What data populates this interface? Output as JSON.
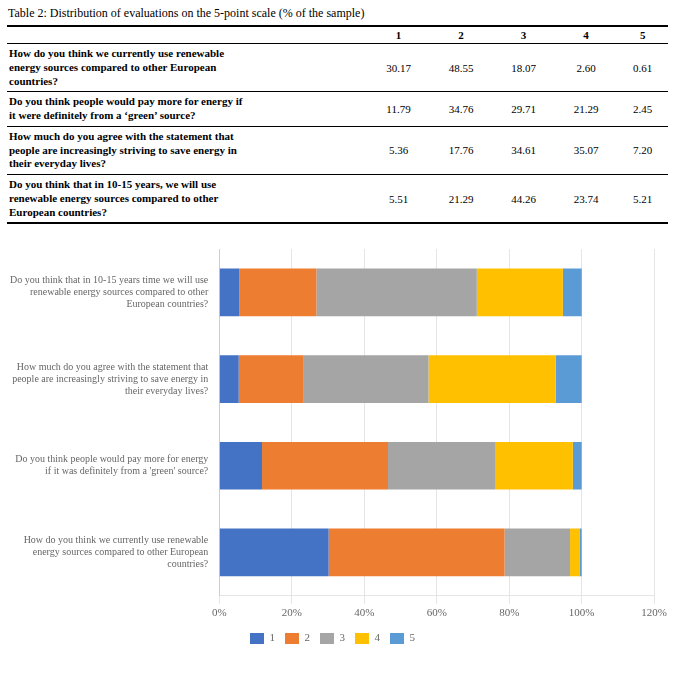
{
  "chart_data": [
    {
      "type": "table",
      "title": "Table 2: Distribution of evaluations on the 5-point scale (% of the sample)",
      "columns": [
        "1",
        "2",
        "3",
        "4",
        "5"
      ],
      "categories": [
        "How do you think we currently use renewable\nenergy sources compared to other European\ncountries?",
        "Do you think people would pay more for energy if\nit were definitely from a ‘green’ source?",
        "How much do you agree with the statement that\npeople are increasingly striving to save energy in\ntheir everyday lives?",
        "Do you think that in 10-15 years, we will use\nrenewable energy sources compared to other\nEuropean countries?"
      ],
      "values": [
        [
          30.17,
          48.55,
          18.07,
          2.6,
          0.61
        ],
        [
          11.79,
          34.76,
          29.71,
          21.29,
          2.45
        ],
        [
          5.36,
          17.76,
          34.61,
          35.07,
          7.2
        ],
        [
          5.51,
          21.29,
          44.26,
          23.74,
          5.21
        ]
      ]
    },
    {
      "type": "bar",
      "orientation": "horizontal",
      "stacked": true,
      "categories": [
        "Do you think that in 10-15 years time we will use\nrenewable energy sources compared to other\nEuropean countries?",
        "How much do you agree with the statement that\npeople are increasingly striving to save energy in\ntheir everyday lives?",
        "Do you think people would pay more for energy\nif it was definitely from a 'green' source?",
        "How do you think we currently use renewable\nenergy sources compared to other European\ncountries?"
      ],
      "series": [
        {
          "name": "1",
          "color": "#4472C4",
          "values": [
            5.51,
            5.36,
            11.79,
            30.17
          ]
        },
        {
          "name": "2",
          "color": "#ED7D31",
          "values": [
            21.29,
            17.76,
            34.76,
            48.55
          ]
        },
        {
          "name": "3",
          "color": "#A5A5A5",
          "values": [
            44.26,
            34.61,
            29.71,
            18.07
          ]
        },
        {
          "name": "4",
          "color": "#FFC000",
          "values": [
            23.74,
            35.07,
            21.29,
            2.6
          ]
        },
        {
          "name": "5",
          "color": "#5B9BD5",
          "values": [
            5.21,
            7.2,
            2.45,
            0.61
          ]
        }
      ],
      "xlim": [
        0,
        120
      ],
      "xticks": [
        {
          "value": 0,
          "label": "0%"
        },
        {
          "value": 20,
          "label": "20%"
        },
        {
          "value": 40,
          "label": "40%"
        },
        {
          "value": 60,
          "label": "60%"
        },
        {
          "value": 80,
          "label": "80%"
        },
        {
          "value": 100,
          "label": "100%"
        },
        {
          "value": 120,
          "label": "120%"
        }
      ],
      "grid": true,
      "legend": "bottom"
    }
  ]
}
